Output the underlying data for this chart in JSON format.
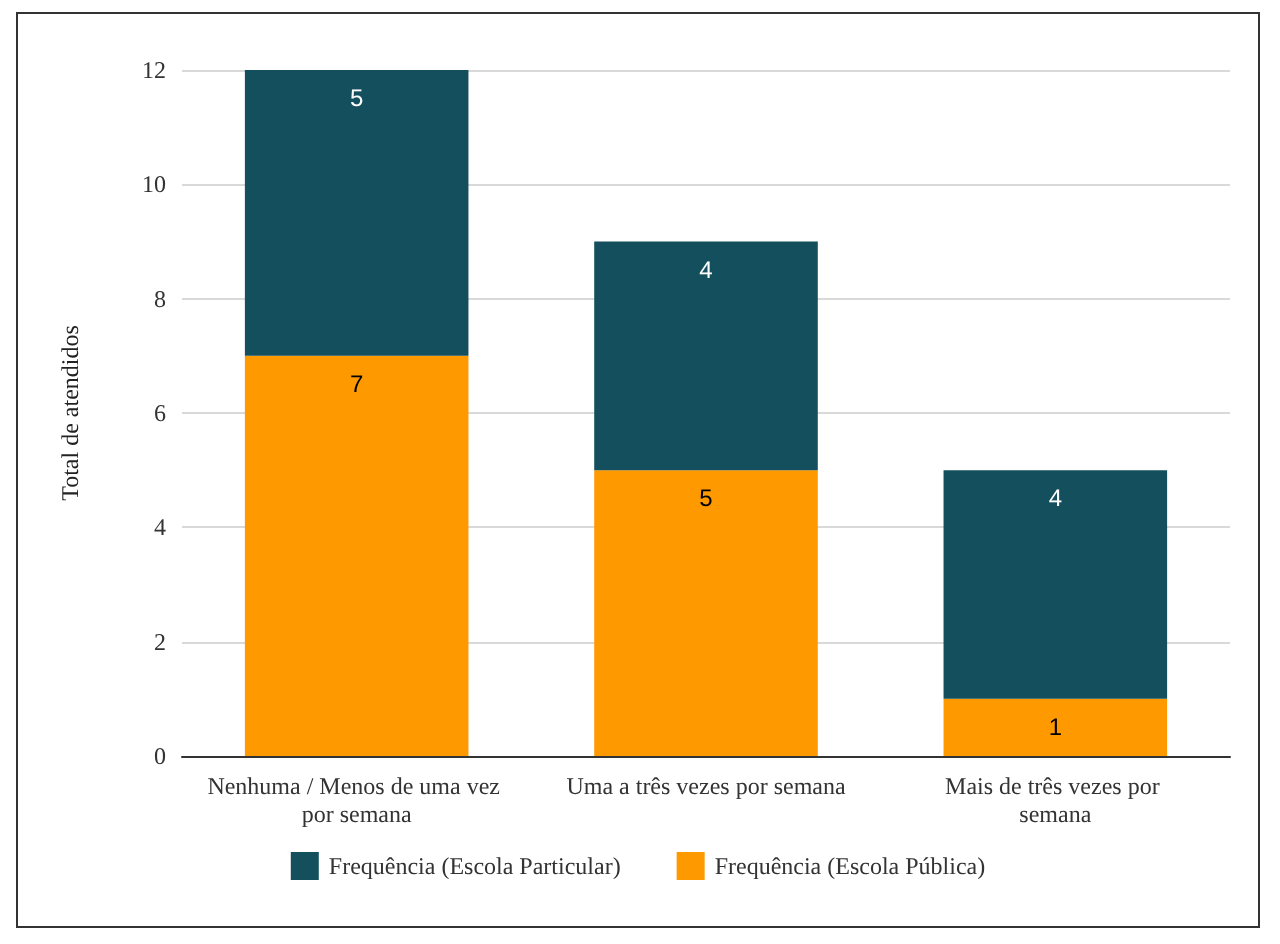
{
  "chart_data": {
    "type": "bar",
    "stacked": true,
    "ylabel": "Total de atendidos",
    "categories": [
      "Nenhuma / Menos de uma vez por semana",
      "Uma a três vezes por semana",
      "Mais de três vezes por semana"
    ],
    "series": [
      {
        "name": "Frequência (Escola Pública)",
        "color": "#ff9900",
        "values": [
          7,
          5,
          1
        ]
      },
      {
        "name": "Frequência (Escola Particular)",
        "color": "#134f5c",
        "values": [
          5,
          4,
          4
        ]
      }
    ],
    "ylim": [
      0,
      12
    ],
    "yticks": [
      0,
      2,
      4,
      6,
      8,
      10,
      12
    ],
    "grid": "y",
    "legend": "bottom",
    "data_labels": true
  }
}
